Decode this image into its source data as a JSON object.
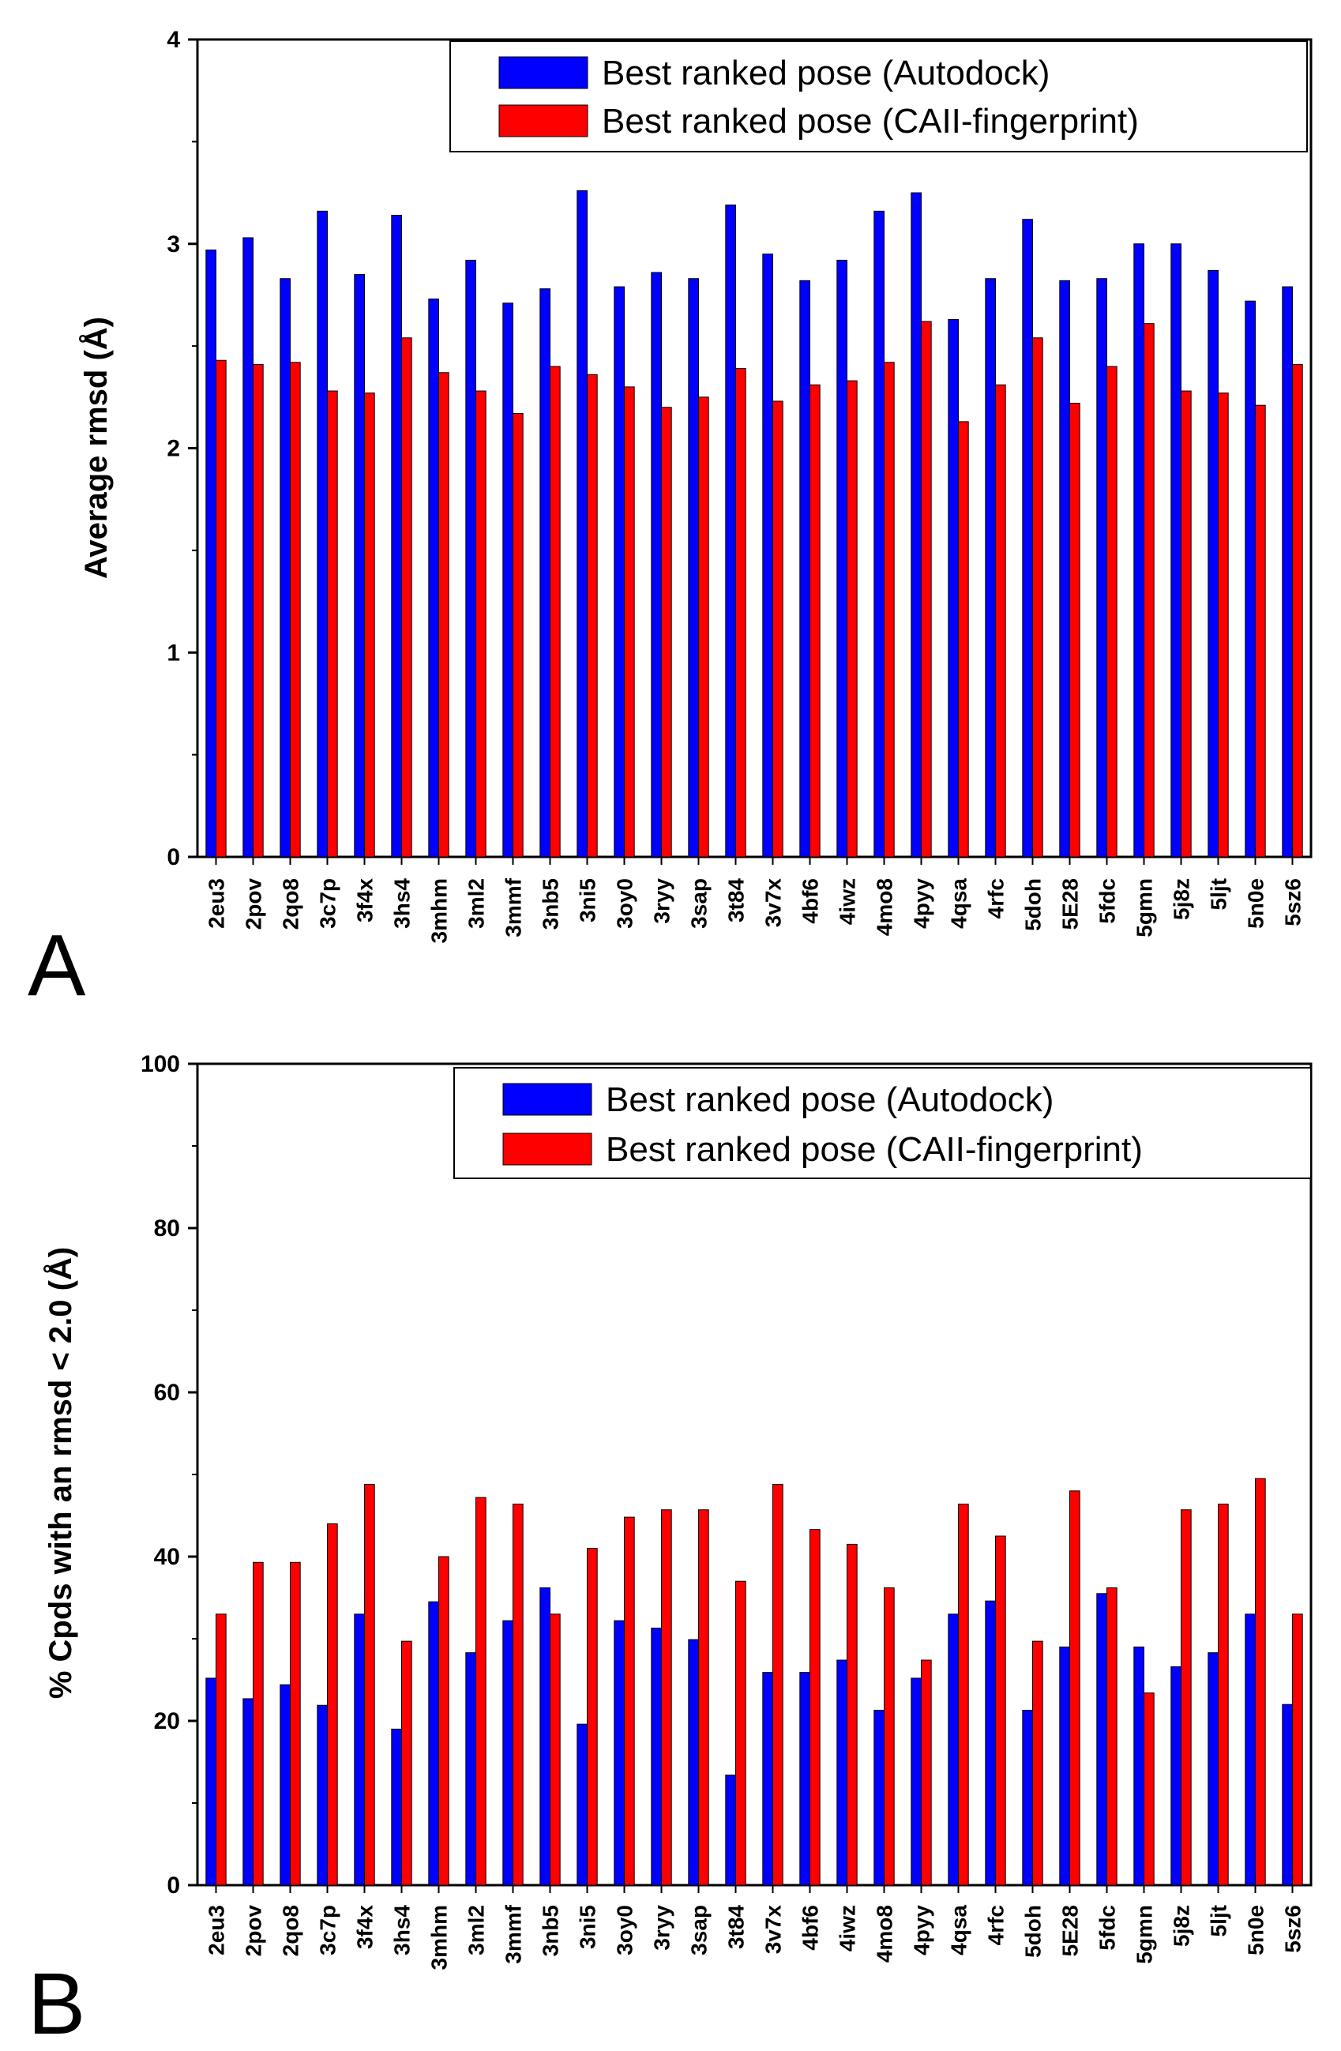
{
  "chart_data": [
    {
      "type": "bar",
      "panel_label": "A",
      "ylabel": "Average rmsd (Å)",
      "xlabel": "",
      "ylim": [
        0,
        4
      ],
      "yticks": [
        "0",
        "1",
        "2",
        "3",
        "4"
      ],
      "legend_position": "top-right",
      "categories": [
        "2eu3",
        "2pov",
        "2qo8",
        "3c7p",
        "3f4x",
        "3hs4",
        "3mhm",
        "3ml2",
        "3mmf",
        "3nb5",
        "3ni5",
        "3oy0",
        "3ryy",
        "3sap",
        "3t84",
        "3v7x",
        "4bf6",
        "4iwz",
        "4mo8",
        "4pyy",
        "4qsa",
        "4rfc",
        "5doh",
        "5E28",
        "5fdc",
        "5gmn",
        "5j8z",
        "5ljt",
        "5n0e",
        "5sz6"
      ],
      "series": [
        {
          "name": "Best ranked pose (Autodock)",
          "color": "#0000ff",
          "values": [
            2.97,
            3.03,
            2.83,
            3.16,
            2.85,
            3.14,
            2.73,
            2.92,
            2.71,
            2.78,
            3.26,
            2.79,
            2.86,
            2.83,
            3.19,
            2.95,
            2.82,
            2.92,
            3.16,
            3.25,
            2.63,
            2.83,
            3.12,
            2.82,
            2.83,
            3.0,
            3.0,
            2.87,
            2.72,
            2.79
          ]
        },
        {
          "name": "Best ranked pose (CAII-fingerprint)",
          "color": "#ff0000",
          "values": [
            2.43,
            2.41,
            2.42,
            2.28,
            2.27,
            2.54,
            2.37,
            2.28,
            2.17,
            2.4,
            2.36,
            2.3,
            2.2,
            2.25,
            2.39,
            2.23,
            2.31,
            2.33,
            2.42,
            2.62,
            2.13,
            2.31,
            2.54,
            2.22,
            2.4,
            2.61,
            2.28,
            2.27,
            2.21,
            2.41
          ]
        }
      ]
    },
    {
      "type": "bar",
      "panel_label": "B",
      "ylabel": "% Cpds with an rmsd < 2.0 (Å)",
      "xlabel": "",
      "ylim": [
        0,
        100
      ],
      "yticks": [
        "0",
        "20",
        "40",
        "60",
        "80",
        "100"
      ],
      "legend_position": "top-right",
      "categories": [
        "2eu3",
        "2pov",
        "2qo8",
        "3c7p",
        "3f4x",
        "3hs4",
        "3mhm",
        "3ml2",
        "3mmf",
        "3nb5",
        "3ni5",
        "3oy0",
        "3ryy",
        "3sap",
        "3t84",
        "3v7x",
        "4bf6",
        "4iwz",
        "4mo8",
        "4pyy",
        "4qsa",
        "4rfc",
        "5doh",
        "5E28",
        "5fdc",
        "5gmn",
        "5j8z",
        "5ljt",
        "5n0e",
        "5sz6"
      ],
      "series": [
        {
          "name": "Best ranked pose (Autodock)",
          "color": "#0000ff",
          "values": [
            25.2,
            22.7,
            24.4,
            21.9,
            33.0,
            19.0,
            34.5,
            28.3,
            32.2,
            36.2,
            19.6,
            32.2,
            31.3,
            29.9,
            13.4,
            25.9,
            25.9,
            27.4,
            21.3,
            25.2,
            33.0,
            34.6,
            21.3,
            29.0,
            35.5,
            29.0,
            26.6,
            28.3,
            33.0,
            22.0
          ]
        },
        {
          "name": "Best ranked pose (CAII-fingerprint)",
          "color": "#ff0000",
          "values": [
            33.0,
            39.3,
            39.3,
            44.0,
            48.8,
            29.7,
            40.0,
            47.2,
            46.4,
            33.0,
            41.0,
            44.8,
            45.7,
            45.7,
            37.0,
            48.8,
            43.3,
            41.5,
            36.2,
            27.4,
            46.4,
            42.5,
            29.7,
            48.0,
            36.2,
            23.4,
            45.7,
            46.4,
            49.5,
            33.0
          ]
        }
      ]
    }
  ]
}
